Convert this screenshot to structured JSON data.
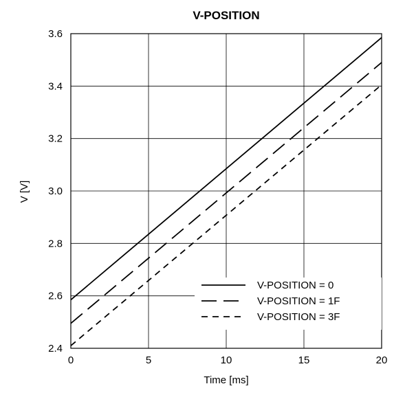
{
  "chart_data": {
    "type": "line",
    "title": "V-POSITION",
    "xlabel": "Time [ms]",
    "ylabel": "V [V]",
    "xlim": [
      0,
      20
    ],
    "ylim": [
      2.4,
      3.6
    ],
    "xticks": [
      0,
      5,
      10,
      15,
      20
    ],
    "xtick_labels": [
      "0",
      "5",
      "10",
      "15",
      "20"
    ],
    "yticks": [
      2.4,
      2.6,
      2.8,
      3.0,
      3.2,
      3.4,
      3.6
    ],
    "ytick_labels": [
      "2.4",
      "2.6",
      "2.8",
      "3.0",
      "3.2",
      "3.4",
      "3.6"
    ],
    "grid": true,
    "legend_position": "bottom-right",
    "series": [
      {
        "name": "V-POSITION = 0",
        "style": "solid",
        "x": [
          0,
          20
        ],
        "y": [
          2.585,
          3.585
        ]
      },
      {
        "name": "V-POSITION = 1F",
        "style": "long-dash",
        "x": [
          0,
          20
        ],
        "y": [
          2.495,
          3.49
        ]
      },
      {
        "name": "V-POSITION = 3F",
        "style": "short-dash",
        "x": [
          0,
          20
        ],
        "y": [
          2.41,
          3.405
        ]
      }
    ]
  }
}
